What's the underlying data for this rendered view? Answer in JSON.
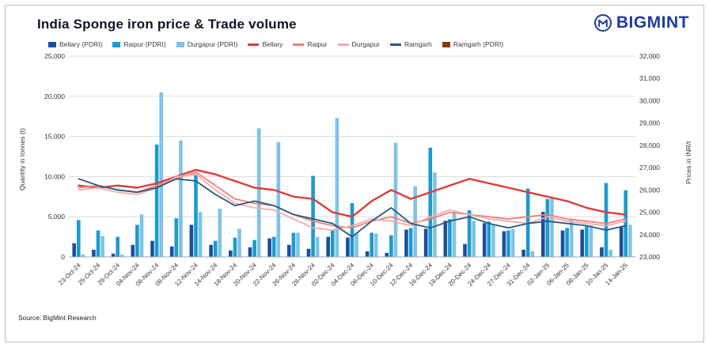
{
  "header": {
    "title": "India Sponge iron price & Trade volume",
    "brand": "BIGMINT",
    "brand_color": "#1e3c9b"
  },
  "source": "Source: BigMint Research",
  "axes": {
    "left_label": "Quantity in tonnes (t)",
    "right_label": "Prices in INR/t",
    "left_ticks": [
      "25,000",
      "20,000",
      "15,000",
      "10,000",
      "5,000",
      "0"
    ],
    "right_ticks": [
      "32,000",
      "31,000",
      "30,000",
      "29,000",
      "28,000",
      "27,000",
      "26,000",
      "25,000",
      "24,000",
      "23,000"
    ]
  },
  "legend": [
    {
      "label": "Bellary (PDRI)",
      "color": "#1a4f9e",
      "marker": "bar"
    },
    {
      "label": "Raipur (PDRI)",
      "color": "#1b9ad2",
      "marker": "bar"
    },
    {
      "label": "Durgapur (PDRI)",
      "color": "#7ec3e6",
      "marker": "bar"
    },
    {
      "label": "Bellary",
      "color": "#e03b3b",
      "marker": "line"
    },
    {
      "label": "Raipur",
      "color": "#ef7f78",
      "marker": "line"
    },
    {
      "label": "Durgapur",
      "color": "#f3abab",
      "marker": "line"
    },
    {
      "label": "Ramgarh",
      "color": "#2a567f",
      "marker": "line"
    },
    {
      "label": "Ramgarh (PDRI)",
      "color": "#843c0c",
      "marker": "bar"
    }
  ],
  "chart_data": {
    "type": "combo",
    "title": "India Sponge iron price & Trade volume",
    "ylabel_left": "Quantity in tonnes (t)",
    "ylabel_right": "Prices in INR/t",
    "ylim_left": [
      0,
      25000
    ],
    "ylim_right": [
      23000,
      32000
    ],
    "grid": true,
    "legend_position": "top",
    "categories": [
      "23-Oct-24",
      "25-Oct-24",
      "29-Oct-24",
      "04-Nov-24",
      "06-Nov-24",
      "08-Nov-24",
      "12-Nov-24",
      "14-Nov-24",
      "18-Nov-24",
      "20-Nov-24",
      "22-Nov-24",
      "26-Nov-24",
      "28-Nov-24",
      "02-Dec-24",
      "04-Dec-24",
      "06-Dec-24",
      "10-Dec-24",
      "12-Dec-24",
      "16-Dec-24",
      "18-Dec-24",
      "20-Dec-24",
      "24-Dec-24",
      "27-Dec-24",
      "31-Dec-24",
      "02-Jan-25",
      "06-Jan-25",
      "08-Jan-25",
      "10-Jan-25",
      "14-Jan-25"
    ],
    "series": [
      {
        "name": "Bellary (PDRI)",
        "type": "bar",
        "axis": "left",
        "color": "#1a4f9e",
        "values": [
          1700,
          900,
          400,
          1500,
          2000,
          1300,
          4000,
          1500,
          800,
          1200,
          2300,
          1500,
          1000,
          2500,
          2400,
          700,
          500,
          3400,
          3500,
          4500,
          1600,
          4200,
          3200,
          900,
          5600,
          3300,
          3400,
          1200,
          3700
        ]
      },
      {
        "name": "Raipur (PDRI)",
        "type": "bar",
        "axis": "left",
        "color": "#1b9ad2",
        "values": [
          4600,
          3300,
          2500,
          4000,
          14000,
          4800,
          10300,
          2000,
          2400,
          2100,
          2500,
          3000,
          10100,
          3300,
          6700,
          3000,
          2700,
          3600,
          13600,
          4700,
          5800,
          4400,
          3300,
          8500,
          7200,
          3600,
          3800,
          9200,
          8300
        ]
      },
      {
        "name": "Durgapur (PDRI)",
        "type": "bar",
        "axis": "left",
        "color": "#7ec3e6",
        "values": [
          300,
          2600,
          300,
          5300,
          20500,
          14500,
          5600,
          6000,
          3500,
          16000,
          14300,
          3000,
          2500,
          17300,
          3000,
          2900,
          14200,
          8800,
          10500,
          5500,
          4500,
          4000,
          3500,
          700,
          7500,
          4700,
          3900,
          900,
          4000
        ]
      },
      {
        "name": "Bellary",
        "type": "line",
        "axis": "right",
        "color": "#e03b3b",
        "values": [
          26200,
          26100,
          26200,
          26100,
          26300,
          26600,
          26900,
          26700,
          26400,
          26100,
          26000,
          25700,
          25600,
          25000,
          24800,
          25500,
          26000,
          25600,
          25900,
          26200,
          26500,
          26300,
          26100,
          25900,
          25700,
          25500,
          25200,
          25000,
          24900
        ]
      },
      {
        "name": "Raipur",
        "type": "line",
        "axis": "right",
        "color": "#ef7f78",
        "values": [
          26100,
          26200,
          26000,
          25900,
          26200,
          26500,
          26800,
          26200,
          25600,
          25400,
          25300,
          24900,
          24600,
          24400,
          24300,
          24600,
          24800,
          24500,
          24700,
          25000,
          24900,
          24800,
          24700,
          24800,
          24900,
          24700,
          24600,
          24500,
          24700
        ]
      },
      {
        "name": "Durgapur",
        "type": "line",
        "axis": "right",
        "color": "#f3abab",
        "values": [
          26000,
          26100,
          25900,
          25800,
          26100,
          26600,
          26700,
          26000,
          25400,
          25200,
          25100,
          24700,
          24300,
          24200,
          24400,
          24700,
          24600,
          24400,
          24800,
          25100,
          24900,
          24700,
          24600,
          24500,
          24800,
          24600,
          24500,
          24400,
          24600
        ]
      },
      {
        "name": "Ramgarh",
        "type": "line",
        "axis": "right",
        "color": "#2a567f",
        "values": [
          26500,
          26200,
          26000,
          25900,
          26100,
          26500,
          26400,
          25800,
          25300,
          25500,
          25300,
          24900,
          24700,
          24500,
          23900,
          24600,
          25200,
          24500,
          24300,
          24600,
          24800,
          24500,
          24300,
          24500,
          24600,
          24500,
          24400,
          24200,
          24400
        ]
      },
      {
        "name": "Ramgarh (PDRI)",
        "type": "bar",
        "axis": "left",
        "color": "#843c0c",
        "values": [
          0,
          0,
          0,
          0,
          0,
          0,
          0,
          0,
          0,
          0,
          0,
          0,
          0,
          0,
          0,
          0,
          0,
          0,
          0,
          0,
          0,
          0,
          0,
          0,
          0,
          0,
          0,
          0,
          0
        ]
      }
    ]
  }
}
